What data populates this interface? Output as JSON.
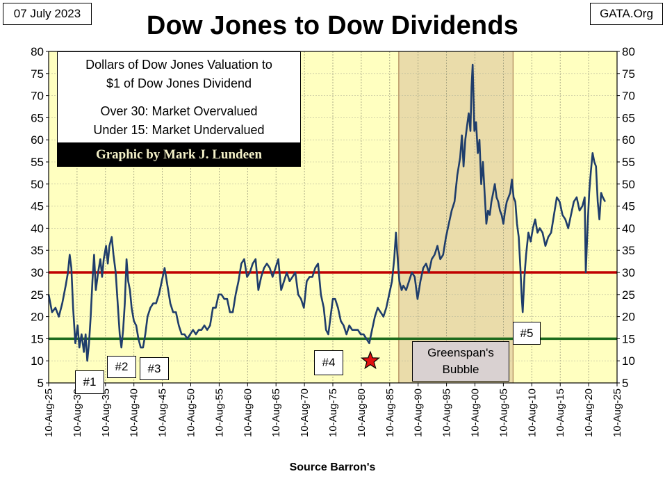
{
  "header": {
    "date": "07 July 2023",
    "site": "GATA.Org"
  },
  "source": "Source Barron's",
  "note": {
    "line1": "Dollars of Dow Jones Valuation to",
    "line2": "$1 of Dow Jones Dividend",
    "line3": "Over 30: Market Overvalued",
    "line4": "Under 15: Market Undervalued"
  },
  "credit": "Graphic by Mark J. Lundeen",
  "labels": {
    "l1": "#1",
    "l2": "#2",
    "l3": "#3",
    "l4": "#4",
    "l5": "#5",
    "greenspan1": "Greenspan's",
    "greenspan2": "Bubble"
  },
  "colors": {
    "plot_bg": "#ffffc0",
    "shade": "#eadcaa",
    "line": "#1f3d6b",
    "over_line": "#c00000",
    "under_line": "#1d6b1d",
    "star": "#e01010"
  },
  "chart_data": {
    "type": "line",
    "title": "Dow Jones to Dow Dividends",
    "ylim": [
      5,
      80
    ],
    "yticks": [
      5,
      10,
      15,
      20,
      25,
      30,
      35,
      40,
      45,
      50,
      55,
      60,
      65,
      70,
      75,
      80
    ],
    "xticks": [
      "10-Aug-25",
      "10-Aug-30",
      "10-Aug-35",
      "10-Aug-40",
      "10-Aug-45",
      "10-Aug-50",
      "10-Aug-55",
      "10-Aug-60",
      "10-Aug-65",
      "10-Aug-70",
      "10-Aug-75",
      "10-Aug-80",
      "10-Aug-85",
      "10-Aug-90",
      "10-Aug-95",
      "10-Aug-00",
      "10-Aug-05",
      "10-Aug-10",
      "10-Aug-15",
      "10-Aug-20",
      "10-Aug-25"
    ],
    "xstart_year": 1925.6,
    "xend_year": 2025.6,
    "reference_lines": [
      {
        "y": 30,
        "color": "#c00000"
      },
      {
        "y": 15,
        "color": "#1d6b1d"
      }
    ],
    "shaded_region": [
      1987.2,
      2007.3
    ],
    "star_marker": {
      "x": 1982.2,
      "y": 10
    },
    "series": [
      {
        "points": [
          [
            1925.6,
            25
          ],
          [
            1926.2,
            21
          ],
          [
            1926.8,
            22
          ],
          [
            1927.4,
            20
          ],
          [
            1928.0,
            23
          ],
          [
            1928.6,
            27
          ],
          [
            1929.0,
            30
          ],
          [
            1929.3,
            34
          ],
          [
            1929.6,
            31
          ],
          [
            1929.9,
            22
          ],
          [
            1930.3,
            14
          ],
          [
            1930.7,
            18
          ],
          [
            1931.0,
            13
          ],
          [
            1931.4,
            16
          ],
          [
            1931.8,
            12
          ],
          [
            1932.1,
            16
          ],
          [
            1932.4,
            10
          ],
          [
            1932.7,
            14
          ],
          [
            1933.0,
            20
          ],
          [
            1933.3,
            28
          ],
          [
            1933.6,
            34
          ],
          [
            1933.9,
            26
          ],
          [
            1934.3,
            30
          ],
          [
            1934.7,
            33
          ],
          [
            1935.0,
            29
          ],
          [
            1935.3,
            33
          ],
          [
            1935.7,
            36
          ],
          [
            1936.0,
            32
          ],
          [
            1936.3,
            36
          ],
          [
            1936.7,
            38
          ],
          [
            1937.0,
            34
          ],
          [
            1937.4,
            30
          ],
          [
            1937.8,
            22
          ],
          [
            1938.1,
            16
          ],
          [
            1938.4,
            13
          ],
          [
            1938.7,
            17
          ],
          [
            1939.0,
            23
          ],
          [
            1939.3,
            33
          ],
          [
            1939.6,
            28
          ],
          [
            1939.9,
            26
          ],
          [
            1940.2,
            22
          ],
          [
            1940.6,
            19
          ],
          [
            1941.0,
            18
          ],
          [
            1941.4,
            15
          ],
          [
            1941.8,
            13
          ],
          [
            1942.2,
            13
          ],
          [
            1942.6,
            16
          ],
          [
            1943.0,
            20
          ],
          [
            1943.5,
            22
          ],
          [
            1944.0,
            23
          ],
          [
            1944.5,
            23
          ],
          [
            1945.0,
            25
          ],
          [
            1945.5,
            28
          ],
          [
            1946.0,
            31
          ],
          [
            1946.5,
            27
          ],
          [
            1947.0,
            23
          ],
          [
            1947.5,
            21
          ],
          [
            1948.0,
            21
          ],
          [
            1948.5,
            18
          ],
          [
            1949.0,
            16
          ],
          [
            1949.5,
            16
          ],
          [
            1950.0,
            15
          ],
          [
            1950.5,
            16
          ],
          [
            1951.0,
            17
          ],
          [
            1951.5,
            16
          ],
          [
            1952.0,
            17
          ],
          [
            1952.5,
            17
          ],
          [
            1953.0,
            18
          ],
          [
            1953.5,
            17
          ],
          [
            1954.0,
            18
          ],
          [
            1954.5,
            22
          ],
          [
            1955.0,
            22
          ],
          [
            1955.5,
            25
          ],
          [
            1956.0,
            25
          ],
          [
            1956.5,
            24
          ],
          [
            1957.0,
            24
          ],
          [
            1957.5,
            21
          ],
          [
            1958.0,
            21
          ],
          [
            1958.5,
            25
          ],
          [
            1959.0,
            28
          ],
          [
            1959.5,
            32
          ],
          [
            1960.0,
            33
          ],
          [
            1960.5,
            29
          ],
          [
            1961.0,
            30
          ],
          [
            1961.5,
            32
          ],
          [
            1962.0,
            33
          ],
          [
            1962.5,
            26
          ],
          [
            1963.0,
            29
          ],
          [
            1963.5,
            31
          ],
          [
            1964.0,
            32
          ],
          [
            1964.5,
            31
          ],
          [
            1965.0,
            29
          ],
          [
            1965.5,
            31
          ],
          [
            1966.0,
            33
          ],
          [
            1966.5,
            26
          ],
          [
            1967.0,
            28
          ],
          [
            1967.5,
            30
          ],
          [
            1968.0,
            28
          ],
          [
            1968.5,
            29
          ],
          [
            1969.0,
            30
          ],
          [
            1969.5,
            25
          ],
          [
            1970.0,
            24
          ],
          [
            1970.5,
            22
          ],
          [
            1971.0,
            28
          ],
          [
            1971.5,
            29
          ],
          [
            1972.0,
            29
          ],
          [
            1972.5,
            31
          ],
          [
            1973.0,
            32
          ],
          [
            1973.5,
            25
          ],
          [
            1974.0,
            22
          ],
          [
            1974.4,
            17
          ],
          [
            1974.8,
            16
          ],
          [
            1975.2,
            20
          ],
          [
            1975.6,
            24
          ],
          [
            1976.0,
            24
          ],
          [
            1976.5,
            22
          ],
          [
            1977.0,
            19
          ],
          [
            1977.5,
            18
          ],
          [
            1978.0,
            16
          ],
          [
            1978.5,
            18
          ],
          [
            1979.0,
            17
          ],
          [
            1979.5,
            17
          ],
          [
            1980.0,
            17
          ],
          [
            1980.5,
            16
          ],
          [
            1981.0,
            16
          ],
          [
            1981.5,
            15
          ],
          [
            1982.0,
            14
          ],
          [
            1982.5,
            17
          ],
          [
            1983.0,
            20
          ],
          [
            1983.5,
            22
          ],
          [
            1984.0,
            21
          ],
          [
            1984.5,
            20
          ],
          [
            1985.0,
            22
          ],
          [
            1985.5,
            25
          ],
          [
            1986.0,
            28
          ],
          [
            1986.4,
            33
          ],
          [
            1986.7,
            39
          ],
          [
            1987.0,
            33
          ],
          [
            1987.3,
            28
          ],
          [
            1987.7,
            26
          ],
          [
            1988.0,
            27
          ],
          [
            1988.5,
            26
          ],
          [
            1989.0,
            28
          ],
          [
            1989.5,
            30
          ],
          [
            1990.0,
            29
          ],
          [
            1990.5,
            24
          ],
          [
            1991.0,
            28
          ],
          [
            1991.5,
            31
          ],
          [
            1992.0,
            32
          ],
          [
            1992.5,
            30
          ],
          [
            1993.0,
            33
          ],
          [
            1993.5,
            34
          ],
          [
            1994.0,
            36
          ],
          [
            1994.5,
            33
          ],
          [
            1995.0,
            34
          ],
          [
            1995.5,
            38
          ],
          [
            1996.0,
            41
          ],
          [
            1996.5,
            44
          ],
          [
            1997.0,
            46
          ],
          [
            1997.5,
            52
          ],
          [
            1998.0,
            56
          ],
          [
            1998.3,
            61
          ],
          [
            1998.6,
            54
          ],
          [
            1998.9,
            60
          ],
          [
            1999.2,
            63
          ],
          [
            1999.5,
            66
          ],
          [
            1999.8,
            62
          ],
          [
            2000.0,
            72
          ],
          [
            2000.2,
            77
          ],
          [
            2000.5,
            62
          ],
          [
            2000.8,
            64
          ],
          [
            2001.1,
            57
          ],
          [
            2001.4,
            60
          ],
          [
            2001.7,
            50
          ],
          [
            2002.0,
            55
          ],
          [
            2002.3,
            48
          ],
          [
            2002.6,
            41
          ],
          [
            2002.9,
            44
          ],
          [
            2003.2,
            43
          ],
          [
            2003.5,
            46
          ],
          [
            2003.8,
            48
          ],
          [
            2004.1,
            50
          ],
          [
            2004.4,
            47
          ],
          [
            2004.7,
            46
          ],
          [
            2005.0,
            44
          ],
          [
            2005.3,
            43
          ],
          [
            2005.6,
            41
          ],
          [
            2005.9,
            44
          ],
          [
            2006.2,
            46
          ],
          [
            2006.5,
            47
          ],
          [
            2006.8,
            48
          ],
          [
            2007.1,
            51
          ],
          [
            2007.4,
            47
          ],
          [
            2007.7,
            46
          ],
          [
            2008.0,
            41
          ],
          [
            2008.3,
            38
          ],
          [
            2008.6,
            31
          ],
          [
            2008.8,
            25
          ],
          [
            2009.0,
            21
          ],
          [
            2009.3,
            29
          ],
          [
            2009.6,
            34
          ],
          [
            2010.0,
            39
          ],
          [
            2010.4,
            37
          ],
          [
            2010.8,
            40
          ],
          [
            2011.2,
            42
          ],
          [
            2011.6,
            39
          ],
          [
            2012.0,
            40
          ],
          [
            2012.5,
            39
          ],
          [
            2013.0,
            36
          ],
          [
            2013.5,
            38
          ],
          [
            2014.0,
            39
          ],
          [
            2014.5,
            43
          ],
          [
            2015.0,
            47
          ],
          [
            2015.5,
            46
          ],
          [
            2016.0,
            43
          ],
          [
            2016.5,
            42
          ],
          [
            2017.0,
            40
          ],
          [
            2017.5,
            43
          ],
          [
            2018.0,
            46
          ],
          [
            2018.5,
            47
          ],
          [
            2019.0,
            44
          ],
          [
            2019.5,
            45
          ],
          [
            2019.9,
            47
          ],
          [
            2020.1,
            30
          ],
          [
            2020.4,
            40
          ],
          [
            2020.7,
            48
          ],
          [
            2021.0,
            53
          ],
          [
            2021.3,
            57
          ],
          [
            2021.6,
            55
          ],
          [
            2021.9,
            54
          ],
          [
            2022.2,
            46
          ],
          [
            2022.5,
            42
          ],
          [
            2022.8,
            48
          ],
          [
            2023.1,
            47
          ],
          [
            2023.5,
            46
          ]
        ]
      }
    ]
  }
}
